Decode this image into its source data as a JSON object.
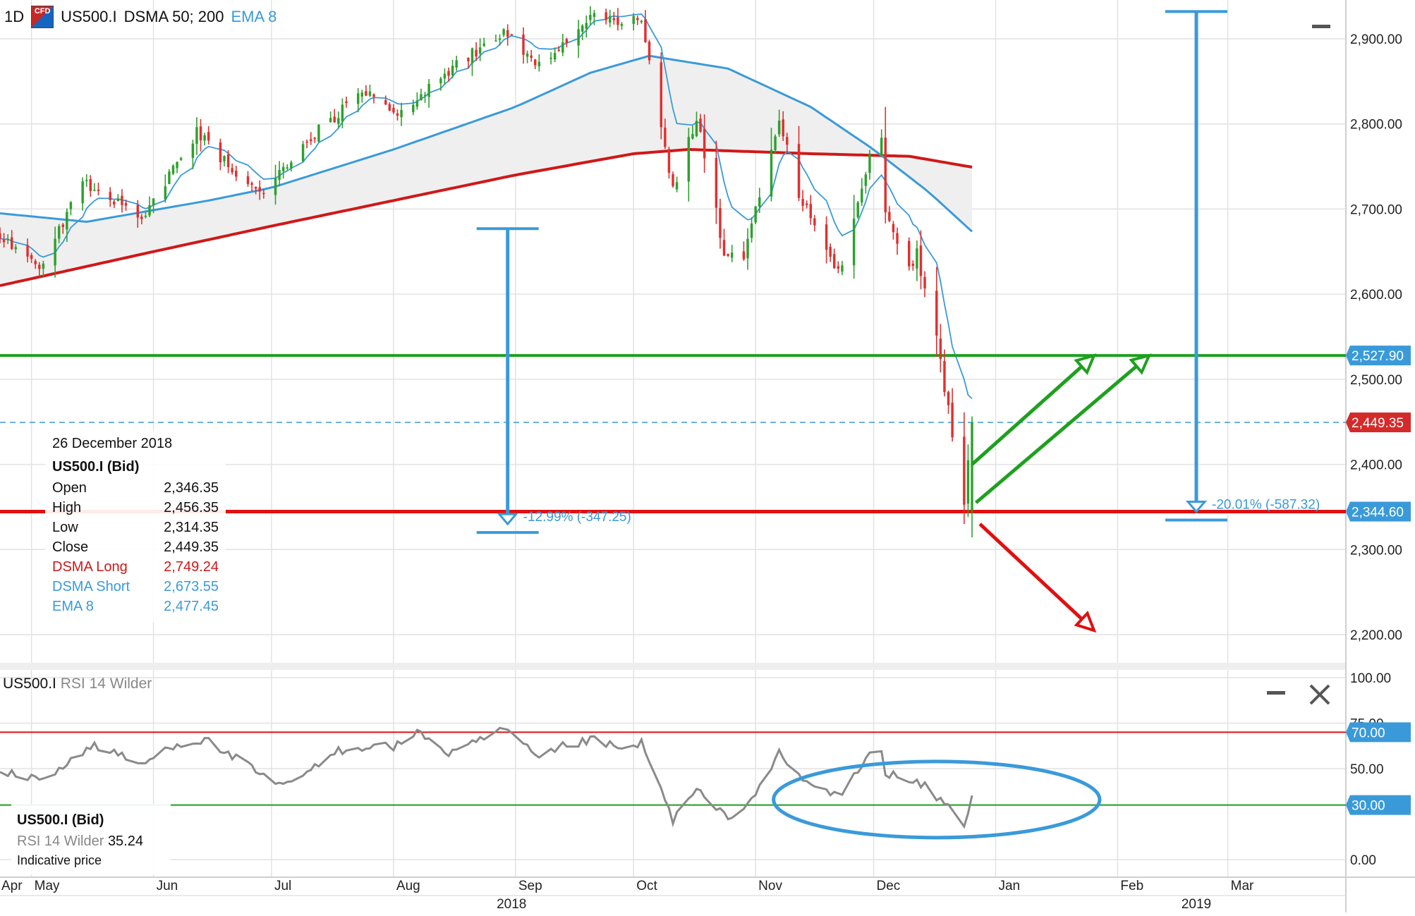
{
  "header": {
    "timeframe": "1D",
    "cfd_badge": "CFD",
    "instrument": "US500.I",
    "dsma": "DSMA 50; 200",
    "ema": "EMA 8"
  },
  "colors": {
    "up_candle": "#2ea02e",
    "down_candle": "#e03030",
    "dsma_long": "#d01818",
    "dsma_short": "#3a9ad9",
    "support": "#e01010",
    "resistance": "#1ea01e",
    "annotation_blue": "#3a9ad9",
    "label_blue": "#3a9ad9",
    "label_red": "#d42a2a",
    "rsi_line": "#8a8a8a",
    "grid": "#e2e2e2"
  },
  "chart_data": [
    {
      "type": "candlestick",
      "instrument": "US500.I",
      "interval": "1D",
      "x_start": "2018-04-23",
      "x_end": "2019-03-31",
      "ylim": [
        2150,
        2950
      ],
      "y_ticks": [
        "2,900.00",
        "2,800.00",
        "2,700.00",
        "2,600.00",
        "2,500.00",
        "2,400.00",
        "2,300.00",
        "2,200.00"
      ],
      "y_tick_values": [
        2900,
        2800,
        2700,
        2600,
        2500,
        2400,
        2300,
        2200
      ],
      "x_ticks": [
        {
          "date": "2018-05-01",
          "label": "May"
        },
        {
          "date": "2018-06-01",
          "label": "Jun"
        },
        {
          "date": "2018-07-01",
          "label": "Jul"
        },
        {
          "date": "2018-08-01",
          "label": "Aug"
        },
        {
          "date": "2018-09-01",
          "label": "Sep"
        },
        {
          "date": "2018-10-01",
          "label": "Oct"
        },
        {
          "date": "2018-11-01",
          "label": "Nov"
        },
        {
          "date": "2018-12-01",
          "label": "Dec"
        },
        {
          "date": "2019-01-01",
          "label": "Jan"
        },
        {
          "date": "2019-02-01",
          "label": "Feb"
        },
        {
          "date": "2019-03-01",
          "label": "Mar"
        }
      ],
      "x_edge_label": "Apr",
      "year_labels": [
        {
          "date": "2018-08-31",
          "label": "2018"
        },
        {
          "date": "2019-02-21",
          "label": "2019"
        }
      ],
      "price_anchors": [
        {
          "date": "2018-04-23",
          "close": 2670
        },
        {
          "date": "2018-05-03",
          "close": 2630
        },
        {
          "date": "2018-05-14",
          "close": 2730
        },
        {
          "date": "2018-05-29",
          "close": 2690
        },
        {
          "date": "2018-06-12",
          "close": 2790
        },
        {
          "date": "2018-06-28",
          "close": 2715
        },
        {
          "date": "2018-07-10",
          "close": 2780
        },
        {
          "date": "2018-07-25",
          "close": 2840
        },
        {
          "date": "2018-08-02",
          "close": 2815
        },
        {
          "date": "2018-08-29",
          "close": 2910
        },
        {
          "date": "2018-09-07",
          "close": 2870
        },
        {
          "date": "2018-09-21",
          "close": 2930
        },
        {
          "date": "2018-09-28",
          "close": 2915
        },
        {
          "date": "2018-10-03",
          "close": 2925
        },
        {
          "date": "2018-10-11",
          "close": 2720
        },
        {
          "date": "2018-10-17",
          "close": 2810
        },
        {
          "date": "2018-10-24",
          "close": 2650
        },
        {
          "date": "2018-10-29",
          "close": 2640
        },
        {
          "date": "2018-11-07",
          "close": 2810
        },
        {
          "date": "2018-11-12",
          "close": 2720
        },
        {
          "date": "2018-11-20",
          "close": 2640
        },
        {
          "date": "2018-11-23",
          "close": 2630
        },
        {
          "date": "2018-11-30",
          "close": 2760
        },
        {
          "date": "2018-12-03",
          "close": 2790
        },
        {
          "date": "2018-12-04",
          "close": 2700
        },
        {
          "date": "2018-12-10",
          "close": 2630
        },
        {
          "date": "2018-12-12",
          "close": 2650
        },
        {
          "date": "2018-12-14",
          "close": 2600
        },
        {
          "date": "2018-12-17",
          "close": 2545
        },
        {
          "date": "2018-12-20",
          "close": 2465
        },
        {
          "date": "2018-12-24",
          "close": 2351
        },
        {
          "date": "2018-12-26",
          "close": 2449.35
        }
      ],
      "ema8_end": {
        "date": "2018-12-26",
        "value": 2477.45
      },
      "dsma_long": {
        "name": "DSMA Long",
        "points": [
          {
            "date": "2018-04-23",
            "value": 2610
          },
          {
            "date": "2018-06-01",
            "value": 2650
          },
          {
            "date": "2018-07-01",
            "value": 2680
          },
          {
            "date": "2018-08-01",
            "value": 2710
          },
          {
            "date": "2018-09-01",
            "value": 2740
          },
          {
            "date": "2018-10-01",
            "value": 2765
          },
          {
            "date": "2018-10-15",
            "value": 2770
          },
          {
            "date": "2018-11-15",
            "value": 2765
          },
          {
            "date": "2018-12-10",
            "value": 2762
          },
          {
            "date": "2018-12-26",
            "value": 2749.24
          }
        ]
      },
      "dsma_short": {
        "name": "DSMA Short",
        "points": [
          {
            "date": "2018-04-23",
            "value": 2695
          },
          {
            "date": "2018-05-15",
            "value": 2685
          },
          {
            "date": "2018-06-15",
            "value": 2710
          },
          {
            "date": "2018-07-01",
            "value": 2725
          },
          {
            "date": "2018-08-01",
            "value": 2770
          },
          {
            "date": "2018-09-01",
            "value": 2820
          },
          {
            "date": "2018-09-20",
            "value": 2860
          },
          {
            "date": "2018-10-05",
            "value": 2880
          },
          {
            "date": "2018-10-25",
            "value": 2865
          },
          {
            "date": "2018-11-15",
            "value": 2820
          },
          {
            "date": "2018-12-01",
            "value": 2770
          },
          {
            "date": "2018-12-15",
            "value": 2720
          },
          {
            "date": "2018-12-26",
            "value": 2673.55
          }
        ]
      },
      "levels": [
        {
          "name": "resistance",
          "value": 2527.9,
          "label": "2,527.90"
        },
        {
          "name": "current",
          "value": 2449.35,
          "label": "2,449.35"
        },
        {
          "name": "support",
          "value": 2344.6,
          "label": "2,344.60"
        }
      ],
      "measures": [
        {
          "date": "2018-08-30",
          "from": 2677,
          "to": 2330,
          "label": "-12.99% (-347.25)"
        },
        {
          "date": "2019-02-21",
          "from": 2932,
          "to": 2344.6,
          "label": "-20.01% (-587.32)"
        }
      ],
      "arrows": [
        {
          "color": "resistance",
          "from": {
            "date": "2018-12-26",
            "value": 2400
          },
          "to": {
            "date": "2019-01-26",
            "value": 2527.9
          }
        },
        {
          "color": "resistance",
          "from": {
            "date": "2018-12-27",
            "value": 2355
          },
          "to": {
            "date": "2019-02-09",
            "value": 2527.9
          }
        },
        {
          "color": "support",
          "from": {
            "date": "2018-12-28",
            "value": 2330
          },
          "to": {
            "date": "2019-01-26",
            "value": 2205
          }
        }
      ]
    },
    {
      "type": "line",
      "name": "RSI 14 Wilder",
      "ylim": [
        0,
        100
      ],
      "y_ticks": [
        "100.00",
        "75.00",
        "50.00",
        "0.00"
      ],
      "y_tick_values": [
        100,
        75,
        50,
        0
      ],
      "bands": [
        {
          "value": 70,
          "label": "70.00"
        },
        {
          "value": 30,
          "label": "30.00"
        }
      ],
      "last_value": 35.24,
      "points": [
        {
          "date": "2018-04-23",
          "value": 48
        },
        {
          "date": "2018-05-03",
          "value": 44
        },
        {
          "date": "2018-05-08",
          "value": 50
        },
        {
          "date": "2018-05-17",
          "value": 63
        },
        {
          "date": "2018-05-29",
          "value": 52
        },
        {
          "date": "2018-06-06",
          "value": 63
        },
        {
          "date": "2018-06-14",
          "value": 66
        },
        {
          "date": "2018-06-26",
          "value": 50
        },
        {
          "date": "2018-07-02",
          "value": 40
        },
        {
          "date": "2018-07-10",
          "value": 47
        },
        {
          "date": "2018-07-18",
          "value": 60
        },
        {
          "date": "2018-07-27",
          "value": 63
        },
        {
          "date": "2018-08-01",
          "value": 62
        },
        {
          "date": "2018-08-08",
          "value": 70
        },
        {
          "date": "2018-08-15",
          "value": 58
        },
        {
          "date": "2018-08-22",
          "value": 64
        },
        {
          "date": "2018-08-29",
          "value": 72
        },
        {
          "date": "2018-09-07",
          "value": 55
        },
        {
          "date": "2018-09-13",
          "value": 62
        },
        {
          "date": "2018-09-21",
          "value": 66
        },
        {
          "date": "2018-09-28",
          "value": 60
        },
        {
          "date": "2018-10-03",
          "value": 64
        },
        {
          "date": "2018-10-11",
          "value": 22
        },
        {
          "date": "2018-10-17",
          "value": 38
        },
        {
          "date": "2018-10-24",
          "value": 24
        },
        {
          "date": "2018-10-29",
          "value": 27
        },
        {
          "date": "2018-11-07",
          "value": 58
        },
        {
          "date": "2018-11-12",
          "value": 45
        },
        {
          "date": "2018-11-20",
          "value": 36
        },
        {
          "date": "2018-11-23",
          "value": 37
        },
        {
          "date": "2018-11-30",
          "value": 57
        },
        {
          "date": "2018-12-03",
          "value": 62
        },
        {
          "date": "2018-12-04",
          "value": 48
        },
        {
          "date": "2018-12-10",
          "value": 43
        },
        {
          "date": "2018-12-14",
          "value": 40
        },
        {
          "date": "2018-12-20",
          "value": 29
        },
        {
          "date": "2018-12-24",
          "value": 19
        },
        {
          "date": "2018-12-26",
          "value": 35.24
        }
      ]
    }
  ],
  "tooltip": {
    "date": "26 December 2018",
    "instrument": "US500.I (Bid)",
    "rows": [
      {
        "label": "Open",
        "value": "2,346.35",
        "style": ""
      },
      {
        "label": "High",
        "value": "2,456.35",
        "style": ""
      },
      {
        "label": "Low",
        "value": "2,314.35",
        "style": ""
      },
      {
        "label": "Close",
        "value": "2,449.35",
        "style": ""
      },
      {
        "label": "DSMA Long",
        "value": "2,749.24",
        "style": "red"
      },
      {
        "label": "DSMA Short",
        "value": "2,673.55",
        "style": "blue"
      },
      {
        "label": "EMA 8",
        "value": "2,477.45",
        "style": "blue"
      }
    ]
  },
  "rsi_header": {
    "instrument": "US500.I",
    "indicator": "RSI 14 Wilder"
  },
  "rsi_tooltip": {
    "instrument": "US500.I (Bid)",
    "indicator": "RSI 14 Wilder",
    "value": "35.24",
    "note": "Indicative price"
  },
  "icons": {
    "minimize": "minimize-icon",
    "close": "close-icon"
  }
}
